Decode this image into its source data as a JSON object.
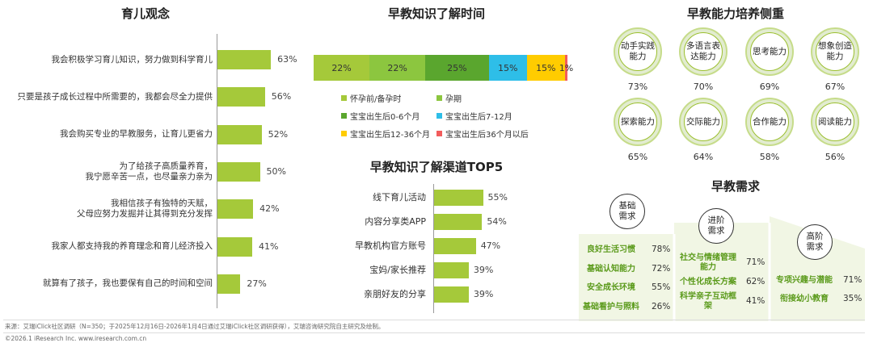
{
  "chart_data": [
    {
      "type": "bar",
      "title": "育儿观念",
      "categories": [
        "我会积极学习育儿知识，努力做到科学育儿",
        "只要是孩子成长过程中所需要的，我都会尽全力提供",
        "我会购买专业的早教服务，让育儿更省力",
        "为了给孩子高质量养育，\n我宁愿辛苦一点，也尽量亲力亲为",
        "我相信孩子有独特的天赋，\n父母应努力发掘并让其得到充分发挥",
        "我家人都支持我的养育理念和育儿经济投入",
        "就算有了孩子，我也要保有自己的时间和空间"
      ],
      "values": [
        63,
        56,
        52,
        50,
        42,
        41,
        27
      ],
      "value_labels": [
        "63%",
        "56%",
        "52%",
        "50%",
        "42%",
        "41%",
        "27%"
      ],
      "color": "#a5c93a"
    },
    {
      "type": "bar",
      "stacked": true,
      "title": "早教知识了解时间",
      "categories": [
        "怀孕前/备孕时",
        "孕期",
        "宝宝出生后0-6个月",
        "宝宝出生后7-12月",
        "宝宝出生后12-36个月",
        "宝宝出生后36个月以后"
      ],
      "values": [
        22,
        22,
        25,
        15,
        15,
        1
      ],
      "value_labels": [
        "22%",
        "22%",
        "25%",
        "15%",
        "15%",
        "1%"
      ],
      "colors": [
        "#a5c93a",
        "#8cc63f",
        "#5aa62e",
        "#2ebee8",
        "#ffcc00",
        "#f25c5c"
      ]
    },
    {
      "type": "bar",
      "title": "早教知识了解渠道TOP5",
      "categories": [
        "线下育儿活动",
        "内容分享类APP",
        "早教机构官方账号",
        "宝妈/家长推荐",
        "亲朋好友的分享"
      ],
      "values": [
        55,
        54,
        47,
        39,
        39
      ],
      "value_labels": [
        "55%",
        "54%",
        "47%",
        "39%",
        "39%"
      ],
      "color": "#a5c93a"
    },
    {
      "type": "table",
      "title": "早教能力培养侧重",
      "categories": [
        "动手实践\n能力",
        "多语言表\n达能力",
        "思考能力",
        "想象创造\n能力",
        "探索能力",
        "交际能力",
        "合作能力",
        "阅读能力"
      ],
      "values": [
        73,
        70,
        69,
        67,
        65,
        64,
        58,
        56
      ],
      "value_labels": [
        "73%",
        "70%",
        "69%",
        "67%",
        "65%",
        "64%",
        "58%",
        "56%"
      ]
    },
    {
      "type": "table",
      "title": "早教需求",
      "groups": [
        {
          "name": "基础\n需求",
          "items": [
            {
              "label": "良好生活习惯",
              "value": 78,
              "text": "78%"
            },
            {
              "label": "基础认知能力",
              "value": 72,
              "text": "72%"
            },
            {
              "label": "安全成长环境",
              "value": 55,
              "text": "55%"
            },
            {
              "label": "基础看护与照料",
              "value": 26,
              "text": "26%"
            }
          ]
        },
        {
          "name": "进阶\n需求",
          "items": [
            {
              "label": "社交与情绪管理\n能力",
              "value": 71,
              "text": "71%"
            },
            {
              "label": "个性化成长方案",
              "value": 62,
              "text": "62%"
            },
            {
              "label": "科学亲子互动框\n架",
              "value": 41,
              "text": "41%"
            }
          ]
        },
        {
          "name": "高阶\n需求",
          "items": [
            {
              "label": "专项兴趣与潜能",
              "value": 71,
              "text": "71%"
            },
            {
              "label": "衔接幼小教育",
              "value": 35,
              "text": "35%"
            }
          ]
        }
      ]
    }
  ],
  "footer": {
    "source": "来源：艾瑞iClick社区调研（N=350；于2025年12月16日-2026年1月4日通过艾瑞iClick社区调研获得），艾瑞咨询研究院自主研究及绘制。",
    "copyright": "©2026.1 iResearch Inc. www.iresearch.com.cn"
  }
}
